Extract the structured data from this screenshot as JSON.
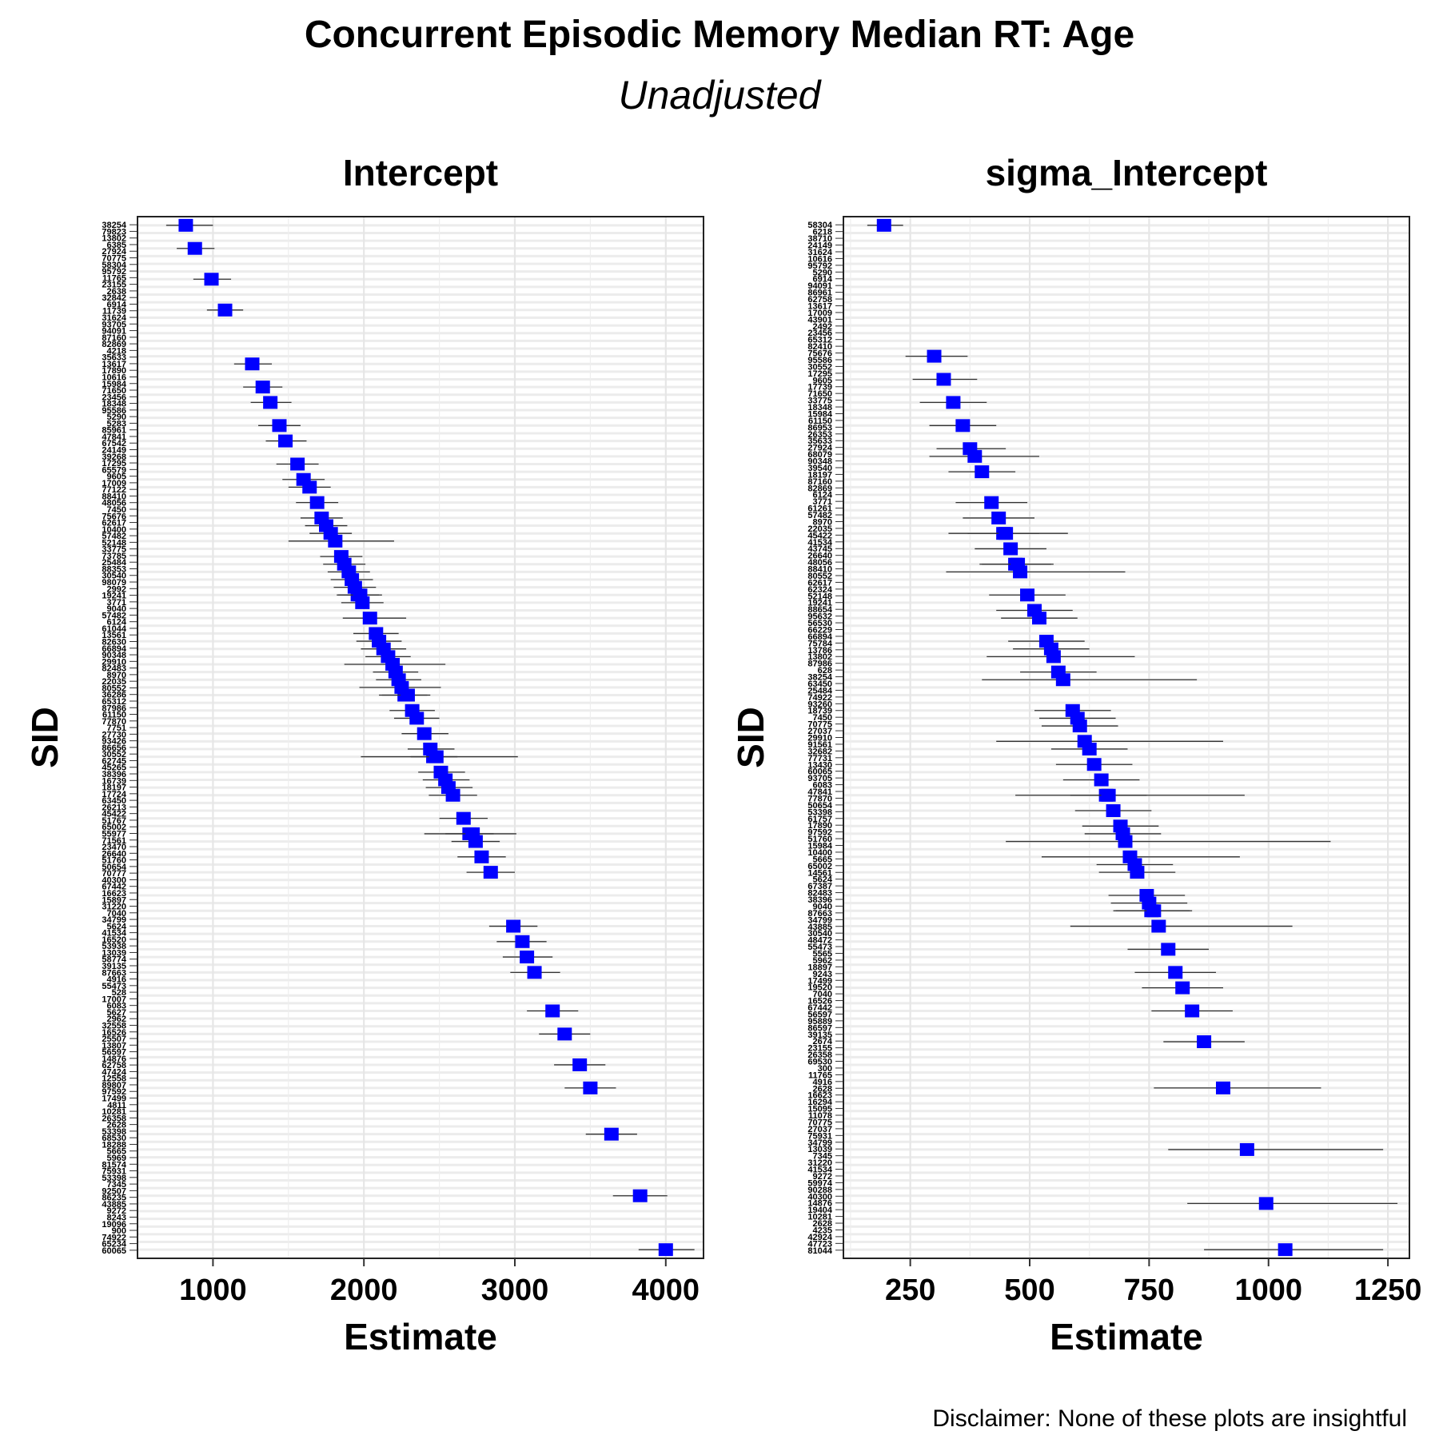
{
  "title": "Concurrent Episodic Memory Median RT: Age",
  "subtitle": "Unadjusted",
  "disclaimer": "Disclaimer: None of these plots are insightful",
  "colors": {
    "point": "#0000ff",
    "errorbar": "#333333",
    "grid": "#e6e6e6"
  },
  "chart_data": [
    {
      "type": "scatter",
      "title": "Intercept",
      "xlabel": "Estimate",
      "ylabel": "SID",
      "xlim": [
        500,
        4250
      ],
      "xticks": [
        1000,
        2000,
        3000,
        4000
      ],
      "n_subjects": 134,
      "legend": "none",
      "grid": true,
      "estimate_range": [
        820,
        4000
      ],
      "sid_labels_visible": [
        "38254",
        "79823",
        "13802",
        "6385",
        "27924",
        "70775",
        "58304",
        "95792",
        "11765",
        "23155",
        "2638",
        "32842",
        "6914",
        "11739",
        "31624",
        "93705",
        "94091",
        "87160",
        "82869",
        "4218",
        "35633",
        "13617",
        "17890",
        "10616",
        "15984",
        "71650",
        "23456",
        "18348",
        "95586",
        "5290",
        "5283",
        "85961",
        "47841",
        "67542",
        "24149",
        "39268",
        "17295",
        "65579",
        "9605",
        "17009",
        "77122",
        "88410",
        "48056",
        "7450",
        "75676",
        "62617",
        "10400",
        "57482",
        "52148",
        "33775",
        "73785",
        "25484",
        "88353",
        "30540",
        "98079",
        "2992",
        "19241",
        "3771",
        "9040",
        "57482",
        "6124",
        "61044",
        "13561",
        "82630",
        "66894",
        "90348",
        "29910",
        "82483",
        "8970",
        "22035",
        "80552",
        "36286",
        "65312",
        "87986",
        "61150",
        "77870",
        "7751",
        "27730",
        "93426",
        "86656",
        "30552",
        "62745",
        "45265",
        "38396",
        "16739",
        "18197",
        "17724",
        "63450",
        "26213",
        "45422",
        "51767",
        "65002",
        "55977",
        "71561",
        "23470",
        "26640",
        "51760",
        "50654",
        "70777",
        "40300",
        "67442",
        "16623",
        "15897",
        "31220",
        "7040",
        "34799",
        "5624",
        "41534",
        "16520",
        "53938",
        "13039",
        "58774",
        "39135",
        "87663",
        "4916",
        "55473",
        "528",
        "17007",
        "6083",
        "5627",
        "2962",
        "32558",
        "16526",
        "25507",
        "13807",
        "56597",
        "14876",
        "62758",
        "47424",
        "12558",
        "89807",
        "97592",
        "17499",
        "4811",
        "10281",
        "26358",
        "2628",
        "53398",
        "68530",
        "18288",
        "5665",
        "5969",
        "81574",
        "75931",
        "53398",
        "7345",
        "92507",
        "86235",
        "43885",
        "9272",
        "8243",
        "19096",
        "900",
        "74922",
        "65234",
        "60065"
      ],
      "points": [
        {
          "sid": "38254",
          "est": 820,
          "lo": 690,
          "hi": 1000
        },
        {
          "sid": "13802",
          "est": 880,
          "lo": 760,
          "hi": 1010
        },
        {
          "sid": "6385",
          "est": 990,
          "lo": 870,
          "hi": 1120
        },
        {
          "sid": "70775",
          "est": 1080,
          "lo": 960,
          "hi": 1200
        },
        {
          "sid": "58304",
          "est": 1260,
          "lo": 1140,
          "hi": 1390
        },
        {
          "sid": "95792",
          "est": 1330,
          "lo": 1200,
          "hi": 1460
        },
        {
          "sid": "11765",
          "est": 1380,
          "lo": 1250,
          "hi": 1520
        },
        {
          "sid": "32842",
          "est": 1440,
          "lo": 1300,
          "hi": 1580
        },
        {
          "sid": "11739",
          "est": 1480,
          "lo": 1350,
          "hi": 1620
        },
        {
          "sid": "31624",
          "est": 1560,
          "lo": 1420,
          "hi": 1700
        },
        {
          "sid": "87160",
          "est": 1600,
          "lo": 1460,
          "hi": 1740
        },
        {
          "sid": "35633",
          "est": 1640,
          "lo": 1500,
          "hi": 1780
        },
        {
          "sid": "17890",
          "est": 1690,
          "lo": 1550,
          "hi": 1830
        },
        {
          "sid": "15984",
          "est": 1720,
          "lo": 1580,
          "hi": 1860
        },
        {
          "sid": "18348",
          "est": 1750,
          "lo": 1610,
          "hi": 1890
        },
        {
          "sid": "5283",
          "est": 1780,
          "lo": 1640,
          "hi": 1920
        },
        {
          "sid": "47841",
          "est": 1810,
          "lo": 1500,
          "hi": 2200
        },
        {
          "sid": "39268",
          "est": 1850,
          "lo": 1710,
          "hi": 1990
        },
        {
          "sid": "9605",
          "est": 1870,
          "lo": 1730,
          "hi": 2010
        },
        {
          "sid": "88410",
          "est": 1900,
          "lo": 1760,
          "hi": 2040
        },
        {
          "sid": "75676",
          "est": 1920,
          "lo": 1780,
          "hi": 2060
        },
        {
          "sid": "57482",
          "est": 1940,
          "lo": 1800,
          "hi": 2080
        },
        {
          "sid": "73785",
          "est": 1960,
          "lo": 1820,
          "hi": 2100
        },
        {
          "sid": "98079",
          "est": 1975,
          "lo": 1830,
          "hi": 2120
        },
        {
          "sid": "9040",
          "est": 1990,
          "lo": 1850,
          "hi": 2130
        },
        {
          "sid": "61044",
          "est": 2040,
          "lo": 1860,
          "hi": 2280
        },
        {
          "sid": "66894",
          "est": 2080,
          "lo": 1930,
          "hi": 2230
        },
        {
          "sid": "82483",
          "est": 2100,
          "lo": 1950,
          "hi": 2250
        },
        {
          "sid": "80552",
          "est": 2130,
          "lo": 1980,
          "hi": 2280
        },
        {
          "sid": "87986",
          "est": 2160,
          "lo": 2010,
          "hi": 2310
        },
        {
          "sid": "7751",
          "est": 2190,
          "lo": 1870,
          "hi": 2540
        },
        {
          "sid": "86656",
          "est": 2210,
          "lo": 2060,
          "hi": 2360
        },
        {
          "sid": "38396",
          "est": 2230,
          "lo": 2080,
          "hi": 2380
        },
        {
          "sid": "18197",
          "est": 2250,
          "lo": 1970,
          "hi": 2510
        },
        {
          "sid": "26213",
          "est": 2270,
          "lo": 2120,
          "hi": 2420
        },
        {
          "sid": "55977",
          "est": 2290,
          "lo": 2100,
          "hi": 2440
        },
        {
          "sid": "26640",
          "est": 2320,
          "lo": 2170,
          "hi": 2470
        },
        {
          "sid": "50654",
          "est": 2350,
          "lo": 2200,
          "hi": 2500
        },
        {
          "sid": "40300",
          "est": 2400,
          "lo": 2250,
          "hi": 2560
        },
        {
          "sid": "15897",
          "est": 2440,
          "lo": 2290,
          "hi": 2600
        },
        {
          "sid": "34799",
          "est": 2460,
          "lo": 2310,
          "hi": 2620
        },
        {
          "sid": "16520",
          "est": 2480,
          "lo": 1980,
          "hi": 3020
        },
        {
          "sid": "58774",
          "est": 2510,
          "lo": 2360,
          "hi": 2670
        },
        {
          "sid": "4916",
          "est": 2540,
          "lo": 2390,
          "hi": 2700
        },
        {
          "sid": "17007",
          "est": 2560,
          "lo": 2410,
          "hi": 2720
        },
        {
          "sid": "2962",
          "est": 2590,
          "lo": 2430,
          "hi": 2750
        },
        {
          "sid": "25507",
          "est": 2660,
          "lo": 2500,
          "hi": 2820
        },
        {
          "sid": "14876",
          "est": 2700,
          "lo": 2540,
          "hi": 2860
        },
        {
          "sid": "47424",
          "est": 2720,
          "lo": 2400,
          "hi": 3010
        },
        {
          "sid": "97592",
          "est": 2740,
          "lo": 2580,
          "hi": 2900
        },
        {
          "sid": "10281",
          "est": 2780,
          "lo": 2620,
          "hi": 2940
        },
        {
          "sid": "68530",
          "est": 2840,
          "lo": 2680,
          "hi": 3000
        },
        {
          "sid": "18288",
          "est": 2990,
          "lo": 2830,
          "hi": 3150
        },
        {
          "sid": "81574",
          "est": 3050,
          "lo": 2880,
          "hi": 3210
        },
        {
          "sid": "53398",
          "est": 3080,
          "lo": 2920,
          "hi": 3250
        },
        {
          "sid": "86235",
          "est": 3130,
          "lo": 2970,
          "hi": 3300
        },
        {
          "sid": "43885",
          "est": 3250,
          "lo": 3080,
          "hi": 3420
        },
        {
          "sid": "9272",
          "est": 3330,
          "lo": 3160,
          "hi": 3500
        },
        {
          "sid": "19096",
          "est": 3430,
          "lo": 3260,
          "hi": 3600
        },
        {
          "sid": "900",
          "est": 3500,
          "lo": 3330,
          "hi": 3670
        },
        {
          "sid": "74922",
          "est": 3640,
          "lo": 3470,
          "hi": 3810
        },
        {
          "sid": "65234",
          "est": 3830,
          "lo": 3650,
          "hi": 4010
        },
        {
          "sid": "60065",
          "est": 4000,
          "lo": 3820,
          "hi": 4190
        }
      ]
    },
    {
      "type": "scatter",
      "title": "sigma_Intercept",
      "xlabel": "Estimate",
      "ylabel": "SID",
      "xlim": [
        110,
        1295
      ],
      "xticks": [
        250,
        500,
        750,
        1000,
        1250
      ],
      "n_subjects": 134,
      "legend": "none",
      "grid": true,
      "estimate_range": [
        195,
        1035
      ],
      "sid_labels_visible": [
        "58304",
        "6218",
        "38710",
        "24149",
        "31624",
        "10616",
        "95792",
        "5290",
        "6914",
        "94091",
        "86961",
        "62758",
        "13617",
        "17009",
        "43901",
        "2492",
        "23456",
        "65312",
        "82410",
        "75676",
        "95586",
        "30552",
        "17295",
        "9605",
        "17739",
        "71650",
        "33775",
        "18348",
        "15984",
        "61150",
        "86953",
        "26353",
        "35633",
        "27924",
        "68079",
        "90348",
        "39540",
        "18197",
        "87160",
        "82869",
        "6124",
        "3771",
        "61261",
        "57482",
        "8970",
        "22035",
        "45422",
        "41534",
        "43745",
        "26640",
        "48056",
        "88410",
        "80552",
        "62617",
        "62324",
        "52148",
        "19241",
        "88654",
        "95632",
        "56530",
        "66229",
        "66894",
        "75784",
        "13786",
        "13802",
        "87986",
        "628",
        "38254",
        "63450",
        "25484",
        "74922",
        "93260",
        "18739",
        "7450",
        "70775",
        "27037",
        "29910",
        "91561",
        "32682",
        "77731",
        "13430",
        "60065",
        "93705",
        "6083",
        "47841",
        "77870",
        "50654",
        "53398",
        "61757",
        "17890",
        "97592",
        "51760",
        "15984",
        "10400",
        "5665",
        "65002",
        "14561",
        "5624",
        "67387",
        "82483",
        "38396",
        "9040",
        "87663",
        "34799",
        "43885",
        "30540",
        "48472",
        "55473",
        "5565",
        "5962",
        "18897",
        "9243",
        "17499",
        "19520",
        "7040",
        "16526",
        "67442",
        "56597",
        "95889",
        "86597",
        "39135",
        "2674",
        "23155",
        "26358",
        "69530",
        "300",
        "11765",
        "4916",
        "2628",
        "16623",
        "16294",
        "15095",
        "11078",
        "70775",
        "27037",
        "75931",
        "34799",
        "13039",
        "7345",
        "31220",
        "41534",
        "9272",
        "59974",
        "90288",
        "40300",
        "14876",
        "19404",
        "10281",
        "2628",
        "4235",
        "42924",
        "47723",
        "81044"
      ],
      "points": [
        {
          "sid": "58304",
          "est": 195,
          "lo": 160,
          "hi": 235
        },
        {
          "sid": "38710",
          "est": 300,
          "lo": 240,
          "hi": 370
        },
        {
          "sid": "31624",
          "est": 320,
          "lo": 255,
          "hi": 390
        },
        {
          "sid": "95792",
          "est": 340,
          "lo": 270,
          "hi": 410
        },
        {
          "sid": "94091",
          "est": 360,
          "lo": 290,
          "hi": 430
        },
        {
          "sid": "13617",
          "est": 375,
          "lo": 305,
          "hi": 450
        },
        {
          "sid": "43901",
          "est": 385,
          "lo": 290,
          "hi": 520
        },
        {
          "sid": "23456",
          "est": 400,
          "lo": 330,
          "hi": 470
        },
        {
          "sid": "82410",
          "est": 420,
          "lo": 345,
          "hi": 495
        },
        {
          "sid": "30552",
          "est": 435,
          "lo": 360,
          "hi": 510
        },
        {
          "sid": "17739",
          "est": 445,
          "lo": 370,
          "hi": 520
        },
        {
          "sid": "33775",
          "est": 450,
          "lo": 330,
          "hi": 580
        },
        {
          "sid": "61150",
          "est": 460,
          "lo": 385,
          "hi": 535
        },
        {
          "sid": "35633",
          "est": 470,
          "lo": 395,
          "hi": 545
        },
        {
          "sid": "68079",
          "est": 475,
          "lo": 400,
          "hi": 550
        },
        {
          "sid": "18197",
          "est": 480,
          "lo": 325,
          "hi": 700
        },
        {
          "sid": "87160",
          "est": 495,
          "lo": 415,
          "hi": 575
        },
        {
          "sid": "3771",
          "est": 510,
          "lo": 430,
          "hi": 590
        },
        {
          "sid": "8970",
          "est": 520,
          "lo": 440,
          "hi": 600
        },
        {
          "sid": "41534",
          "est": 535,
          "lo": 455,
          "hi": 615
        },
        {
          "sid": "48056",
          "est": 545,
          "lo": 465,
          "hi": 625
        },
        {
          "sid": "62617",
          "est": 550,
          "lo": 410,
          "hi": 720
        },
        {
          "sid": "19241",
          "est": 560,
          "lo": 480,
          "hi": 640
        },
        {
          "sid": "66229",
          "est": 570,
          "lo": 400,
          "hi": 850
        },
        {
          "sid": "13786",
          "est": 590,
          "lo": 510,
          "hi": 670
        },
        {
          "sid": "628",
          "est": 600,
          "lo": 520,
          "hi": 680
        },
        {
          "sid": "74922",
          "est": 605,
          "lo": 525,
          "hi": 685
        },
        {
          "sid": "93260",
          "est": 615,
          "lo": 430,
          "hi": 905
        },
        {
          "sid": "70775",
          "est": 625,
          "lo": 545,
          "hi": 705
        },
        {
          "sid": "32682",
          "est": 635,
          "lo": 555,
          "hi": 715
        },
        {
          "sid": "60065",
          "est": 650,
          "lo": 570,
          "hi": 730
        },
        {
          "sid": "47841",
          "est": 660,
          "lo": 470,
          "hi": 950
        },
        {
          "sid": "53398",
          "est": 665,
          "lo": 585,
          "hi": 745
        },
        {
          "sid": "51760",
          "est": 675,
          "lo": 595,
          "hi": 755
        },
        {
          "sid": "65002",
          "est": 690,
          "lo": 610,
          "hi": 770
        },
        {
          "sid": "82483",
          "est": 695,
          "lo": 615,
          "hi": 775
        },
        {
          "sid": "87663",
          "est": 700,
          "lo": 450,
          "hi": 1130
        },
        {
          "sid": "48472",
          "est": 710,
          "lo": 525,
          "hi": 940
        },
        {
          "sid": "5962",
          "est": 720,
          "lo": 640,
          "hi": 800
        },
        {
          "sid": "19520",
          "est": 725,
          "lo": 645,
          "hi": 805
        },
        {
          "sid": "56597",
          "est": 745,
          "lo": 665,
          "hi": 825
        },
        {
          "sid": "2674",
          "est": 750,
          "lo": 670,
          "hi": 830
        },
        {
          "sid": "300",
          "est": 755,
          "lo": 675,
          "hi": 835
        },
        {
          "sid": "16623",
          "est": 760,
          "lo": 680,
          "hi": 840
        },
        {
          "sid": "11078",
          "est": 770,
          "lo": 585,
          "hi": 1050
        },
        {
          "sid": "75931",
          "est": 790,
          "lo": 705,
          "hi": 875
        },
        {
          "sid": "7345",
          "est": 805,
          "lo": 720,
          "hi": 890
        },
        {
          "sid": "9272",
          "est": 820,
          "lo": 735,
          "hi": 905
        },
        {
          "sid": "40300",
          "est": 840,
          "lo": 755,
          "hi": 925
        },
        {
          "sid": "2628",
          "est": 865,
          "lo": 780,
          "hi": 950
        },
        {
          "sid": "4235",
          "est": 905,
          "lo": 760,
          "hi": 1110
        },
        {
          "sid": "42924",
          "est": 955,
          "lo": 790,
          "hi": 1240
        },
        {
          "sid": "47723",
          "est": 995,
          "lo": 830,
          "hi": 1270
        },
        {
          "sid": "81044",
          "est": 1035,
          "lo": 865,
          "hi": 1240
        }
      ]
    }
  ]
}
